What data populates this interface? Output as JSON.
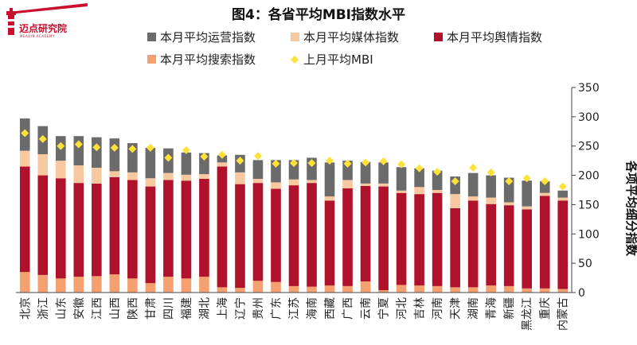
{
  "brand": {
    "name": "迈点研究院",
    "subtitle": "MEADIN ACADEMY",
    "accent": "#c8102e"
  },
  "chart_data": {
    "type": "bar",
    "stacked": true,
    "title": "图4：各省平均MBI指数水平",
    "ylabel": "各项平均细分指数",
    "ylim": [
      0,
      350
    ],
    "yticks": [
      0,
      50,
      100,
      150,
      200,
      250,
      300,
      350
    ],
    "y_axis_side": "right",
    "categories": [
      "北京",
      "浙江",
      "山东",
      "安徽",
      "江西",
      "山西",
      "陕西",
      "甘肃",
      "四川",
      "福建",
      "湖北",
      "上海",
      "辽宁",
      "贵州",
      "广东",
      "江苏",
      "海南",
      "西藏",
      "广西",
      "云南",
      "宁夏",
      "河北",
      "吉林",
      "河南",
      "天津",
      "湖南",
      "青海",
      "新疆",
      "黑龙江",
      "重庆",
      "内蒙古"
    ],
    "series": [
      {
        "name": "本月平均搜索指数",
        "color": "#f4a070",
        "kind": "bar",
        "values": [
          35,
          30,
          24,
          27,
          28,
          31,
          24,
          16,
          27,
          24,
          27,
          9,
          8,
          20,
          18,
          11,
          10,
          12,
          11,
          19,
          4,
          13,
          12,
          11,
          9,
          9,
          12,
          11,
          7,
          7,
          6
        ]
      },
      {
        "name": "本月平均舆情指数",
        "color": "#b0112b",
        "kind": "bar",
        "values": [
          180,
          170,
          171,
          160,
          158,
          166,
          168,
          165,
          165,
          167,
          167,
          206,
          177,
          167,
          159,
          172,
          177,
          145,
          167,
          163,
          177,
          157,
          156,
          159,
          135,
          148,
          139,
          138,
          135,
          158,
          151
        ]
      },
      {
        "name": "本月平均媒体指数",
        "color": "#f8c9a0",
        "kind": "bar",
        "values": [
          27,
          36,
          30,
          30,
          27,
          10,
          13,
          14,
          12,
          10,
          8,
          7,
          20,
          7,
          11,
          10,
          5,
          7,
          14,
          4,
          5,
          4,
          12,
          5,
          24,
          7,
          11,
          5,
          5,
          5,
          5
        ]
      },
      {
        "name": "本月平均运营指数",
        "color": "#6b6b6b",
        "kind": "bar",
        "values": [
          55,
          48,
          42,
          50,
          52,
          56,
          50,
          52,
          42,
          38,
          36,
          12,
          30,
          32,
          38,
          33,
          38,
          58,
          33,
          37,
          36,
          40,
          32,
          33,
          30,
          40,
          38,
          42,
          44,
          20,
          12
        ]
      },
      {
        "name": "上月平均MBI",
        "color": "#ffe13a",
        "kind": "marker",
        "values": [
          272,
          262,
          250,
          253,
          248,
          247,
          245,
          247,
          230,
          243,
          232,
          235,
          225,
          233,
          220,
          221,
          221,
          225,
          220,
          222,
          224,
          219,
          212,
          206,
          190,
          213,
          205,
          190,
          195,
          190,
          181
        ]
      }
    ],
    "legend": [
      {
        "name": "本月平均运营指数",
        "color": "#6b6b6b",
        "kind": "bar"
      },
      {
        "name": "本月平均媒体指数",
        "color": "#f8c9a0",
        "kind": "bar"
      },
      {
        "name": "本月平均舆情指数",
        "color": "#b0112b",
        "kind": "bar"
      },
      {
        "name": "本月平均搜索指数",
        "color": "#f4a070",
        "kind": "bar"
      },
      {
        "name": "上月平均MBI",
        "color": "#ffe13a",
        "kind": "marker"
      }
    ],
    "legend_position": "top-left"
  }
}
